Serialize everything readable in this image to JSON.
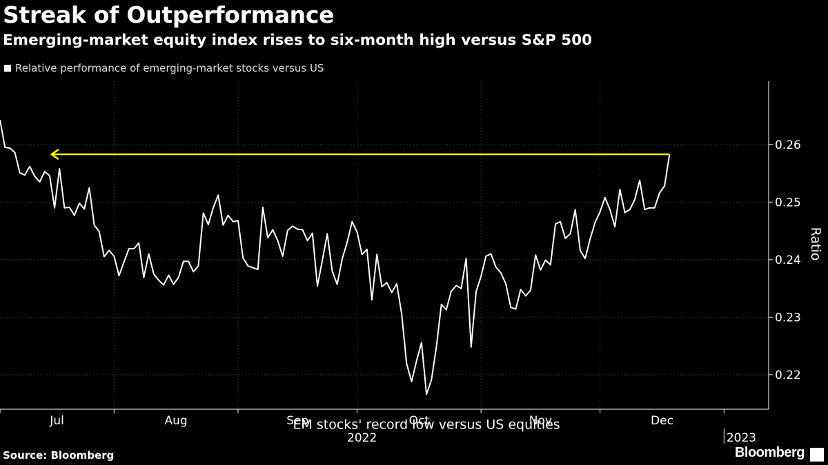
{
  "header": {
    "title": "Streak of Outperformance",
    "subtitle": "Emerging-market equity index rises to six-month high versus S&P 500"
  },
  "footer": {
    "source": "Source: Bloomberg",
    "brand": "Bloomberg"
  },
  "chart_data": {
    "type": "line",
    "title": "Streak of Outperformance",
    "subtitle": "Emerging-market equity index rises to six-month high versus S&P 500",
    "ylabel": "Ratio",
    "xlabel": "",
    "ylim": [
      0.214,
      0.271
    ],
    "yticks": [
      0.22,
      0.23,
      0.24,
      0.25,
      0.26
    ],
    "ytick_labels": [
      "0.22",
      "0.23",
      "0.24",
      "0.25",
      "0.26"
    ],
    "x_range": [
      0,
      155
    ],
    "x_month_ticks": [
      {
        "label": "Jul",
        "start": 0,
        "end": 23
      },
      {
        "label": "Aug",
        "start": 23,
        "end": 48
      },
      {
        "label": "Sep",
        "start": 48,
        "end": 72
      },
      {
        "label": "Oct",
        "start": 72,
        "end": 97
      },
      {
        "label": "Nov",
        "start": 97,
        "end": 121
      },
      {
        "label": "Dec",
        "start": 121,
        "end": 146
      }
    ],
    "x_year_labels": [
      {
        "label": "2022",
        "at": 73
      },
      {
        "label": "2023",
        "at": 149.5
      }
    ],
    "year_separator_at": 146,
    "grid": true,
    "legend_position": "top-left",
    "series": [
      {
        "name": "Relative performance of emerging-market stocks versus US",
        "color": "#ffffff",
        "values": [
          0.2643,
          0.2595,
          0.2594,
          0.2586,
          0.2551,
          0.2547,
          0.2562,
          0.2545,
          0.2535,
          0.2553,
          0.2546,
          0.249,
          0.2558,
          0.249,
          0.2491,
          0.2477,
          0.2498,
          0.2488,
          0.2525,
          0.246,
          0.2449,
          0.2405,
          0.2416,
          0.2406,
          0.2372,
          0.2396,
          0.2419,
          0.2419,
          0.2429,
          0.2369,
          0.241,
          0.2375,
          0.2364,
          0.2356,
          0.2373,
          0.2357,
          0.2369,
          0.2397,
          0.2397,
          0.2379,
          0.2389,
          0.2481,
          0.2461,
          0.249,
          0.2512,
          0.246,
          0.2477,
          0.2466,
          0.2468,
          0.2403,
          0.2389,
          0.2386,
          0.2383,
          0.2491,
          0.2438,
          0.2452,
          0.2433,
          0.2406,
          0.2451,
          0.2458,
          0.2453,
          0.2452,
          0.2433,
          0.2446,
          0.2354,
          0.2399,
          0.2445,
          0.238,
          0.2357,
          0.2401,
          0.243,
          0.2466,
          0.2448,
          0.2409,
          0.2418,
          0.233,
          0.2409,
          0.2353,
          0.236,
          0.2343,
          0.2358,
          0.2305,
          0.2219,
          0.2188,
          0.2224,
          0.2256,
          0.2166,
          0.2191,
          0.2249,
          0.2322,
          0.2313,
          0.2345,
          0.2355,
          0.235,
          0.2402,
          0.2248,
          0.2344,
          0.2371,
          0.2406,
          0.241,
          0.2387,
          0.2377,
          0.2358,
          0.2317,
          0.2314,
          0.2348,
          0.2337,
          0.2347,
          0.2408,
          0.2382,
          0.2399,
          0.2391,
          0.2462,
          0.2466,
          0.2437,
          0.2445,
          0.2487,
          0.2416,
          0.2402,
          0.2436,
          0.2465,
          0.2483,
          0.2508,
          0.2487,
          0.2457,
          0.2522,
          0.2482,
          0.2487,
          0.2504,
          0.2538,
          0.2487,
          0.249,
          0.249,
          0.2516,
          0.2528,
          0.2583
        ]
      }
    ],
    "annotations": [
      {
        "text": "EM stocks' record low versus US equities",
        "x": 86,
        "y": 0.2166
      },
      {
        "type": "arrow",
        "color": "#ffff00",
        "from_x": 135,
        "to_x": 10.4,
        "y": 0.2583
      }
    ]
  }
}
